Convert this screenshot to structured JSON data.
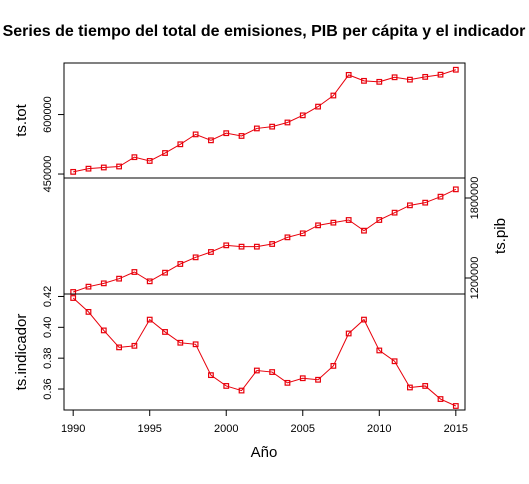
{
  "chart_data": {
    "type": "line",
    "title": "Series de tiempo del total de emisiones, PIB per cápita y el indicador",
    "xlabel": "Año",
    "x": [
      1990,
      1991,
      1992,
      1993,
      1994,
      1995,
      1996,
      1997,
      1998,
      1999,
      2000,
      2001,
      2002,
      2003,
      2004,
      2005,
      2006,
      2007,
      2008,
      2009,
      2010,
      2011,
      2012,
      2013,
      2014,
      2015
    ],
    "x_ticks": [
      "1990",
      "1995",
      "2000",
      "2005",
      "2010",
      "2015"
    ],
    "xlim": [
      1989.4,
      2015.6
    ],
    "line_color": "#e8000b",
    "marker": "square",
    "panels": [
      {
        "ylabel": "ts.tot",
        "axis_side": "left",
        "ylim": [
          440000,
          730000
        ],
        "yticks": [
          450000,
          600000
        ],
        "ytick_labels": [
          "450000",
          "600000"
        ],
        "values": [
          455500,
          463500,
          466500,
          469000,
          492500,
          483000,
          503000,
          525000,
          550000,
          535000,
          553000,
          546000,
          565000,
          569500,
          580000,
          598000,
          620000,
          648000,
          700000,
          685000,
          682500,
          694000,
          688000,
          695000,
          700500,
          713000
        ]
      },
      {
        "ylabel": "ts.pib",
        "axis_side": "right",
        "ylim": [
          1080000,
          1950000
        ],
        "yticks": [
          1200000,
          1800000
        ],
        "ytick_labels": [
          "1200000",
          "1800000"
        ],
        "values": [
          1095000,
          1135000,
          1160000,
          1195000,
          1245000,
          1175000,
          1240000,
          1305000,
          1355000,
          1395000,
          1445000,
          1435000,
          1435000,
          1455000,
          1505000,
          1535000,
          1595000,
          1615000,
          1635000,
          1555000,
          1635000,
          1690000,
          1745000,
          1765000,
          1810000,
          1865000
        ]
      },
      {
        "ylabel": "ts.indicador",
        "axis_side": "left",
        "ylim": [
          0.3464,
          0.4216
        ],
        "yticks": [
          0.36,
          0.38,
          0.4,
          0.42
        ],
        "ytick_labels": [
          "0.36",
          "0.38",
          "0.40",
          "0.42"
        ],
        "values": [
          0.419,
          0.41,
          0.398,
          0.387,
          0.388,
          0.405,
          0.397,
          0.39,
          0.389,
          0.369,
          0.362,
          0.359,
          0.372,
          0.371,
          0.364,
          0.367,
          0.366,
          0.375,
          0.396,
          0.405,
          0.385,
          0.378,
          0.361,
          0.362,
          0.3535,
          0.349
        ]
      }
    ]
  }
}
